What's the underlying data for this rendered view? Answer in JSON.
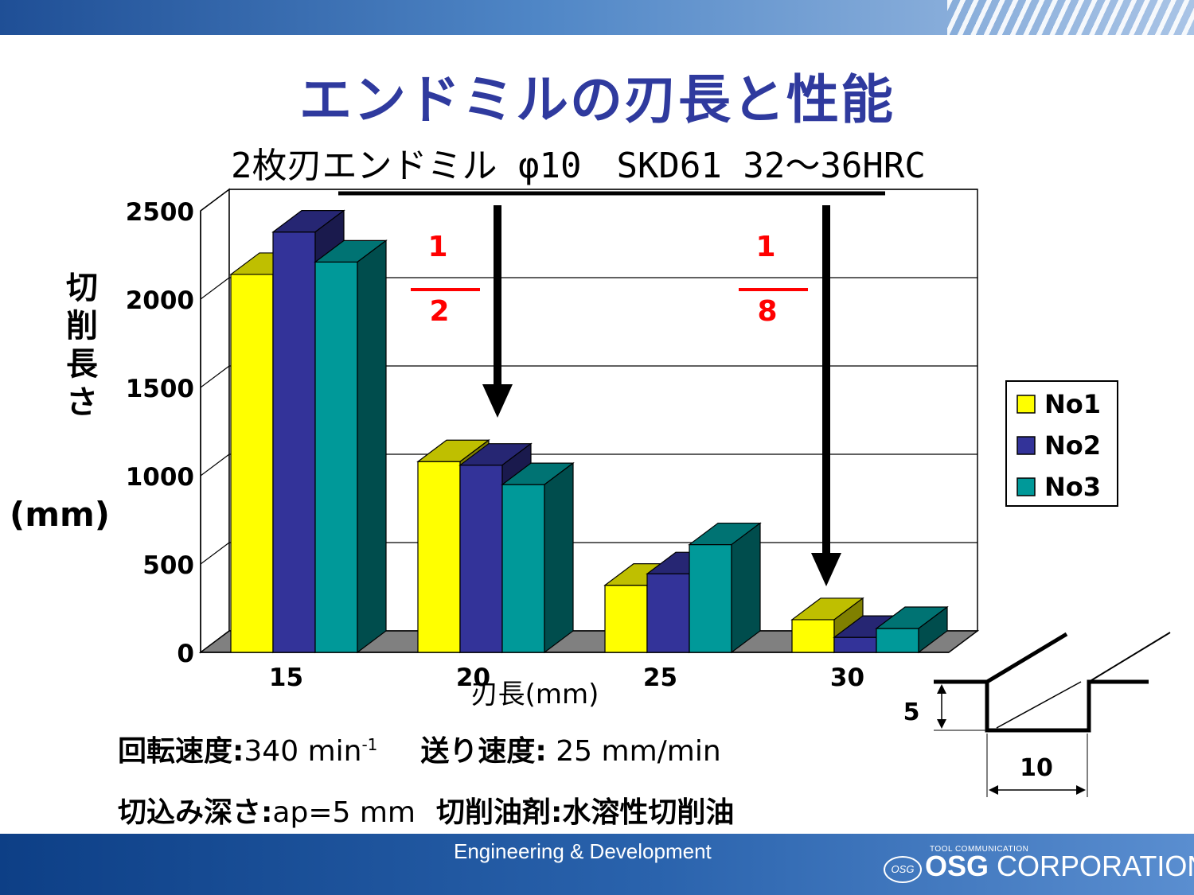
{
  "header": {
    "title": "エンドミルの刃長と性能",
    "subtitle": "2枚刃エンドミル φ10　SKD61 32～36HRC"
  },
  "colors": {
    "no1": "#ffff00",
    "no2": "#333399",
    "no3": "#009999",
    "fraction": "#ff0000",
    "title": "#2f3a9e"
  },
  "chart_data": {
    "type": "bar",
    "categories": [
      "15",
      "20",
      "25",
      "30"
    ],
    "series": [
      {
        "name": "No1",
        "values": [
          2140,
          1080,
          380,
          185
        ]
      },
      {
        "name": "No2",
        "values": [
          2380,
          1060,
          445,
          85
        ]
      },
      {
        "name": "No3",
        "values": [
          2210,
          950,
          610,
          135
        ]
      }
    ],
    "yticks": [
      "0",
      "500",
      "1000",
      "1500",
      "2000",
      "2500"
    ],
    "ylim": [
      0,
      2500
    ],
    "ylabel": "切削長さ",
    "yunit": "(mm)",
    "xlabel": "刃長(mm)",
    "grid": true,
    "legend_position": "right",
    "annotations": [
      {
        "numerator": "1",
        "denominator": "2",
        "from_category": "15",
        "to_category": "20"
      },
      {
        "numerator": "1",
        "denominator": "8",
        "from_category": "15",
        "to_category": "30"
      }
    ]
  },
  "params": {
    "line1_label_a": "回転速度:",
    "line1_value_a": "340 min",
    "line1_sup": "-1",
    "line1_label_b": "送り速度:",
    "line1_value_b": " 25 mm/min",
    "line2_label_a": "切込み深さ:",
    "line2_value_a": "ap=5 mm",
    "line2_label_b": "切削油剤:",
    "line2_value_b": "水溶性切削油"
  },
  "diagram": {
    "depth": "5",
    "width": "10"
  },
  "footer": {
    "text": "Engineering & Development",
    "logo_small": "TOOL COMMUNICATION",
    "logo_mark": "OSG",
    "logo_osg": "OSG",
    "logo_corp": " CORPORATION"
  }
}
